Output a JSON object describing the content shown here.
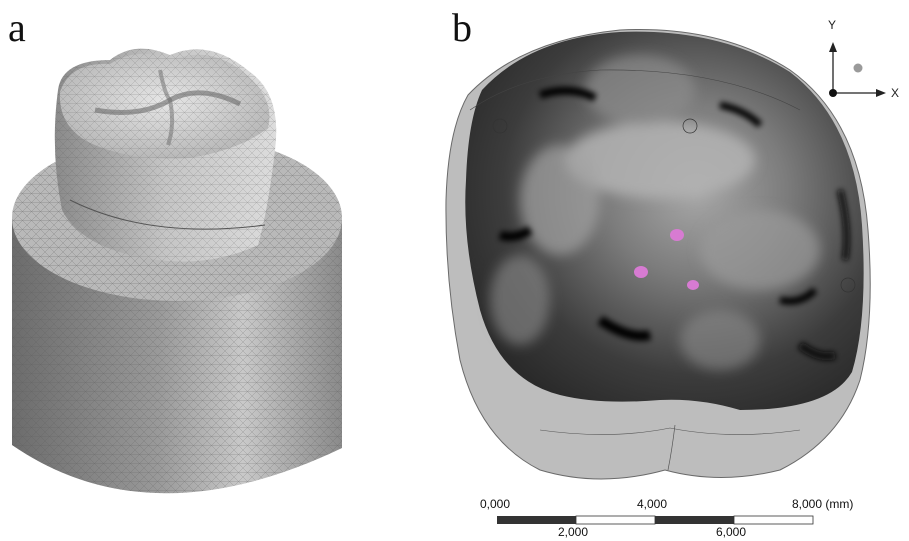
{
  "panels": {
    "a": {
      "label": "a"
    },
    "b": {
      "label": "b"
    }
  },
  "axis_triad": {
    "y_label": "Y",
    "x_label": "X"
  },
  "scale_bar": {
    "top_labels": [
      "0,000",
      "4,000",
      "8,000 (mm)"
    ],
    "bottom_labels": [
      "2,000",
      "6,000"
    ]
  },
  "colors": {
    "contact_points": "#d77bd2",
    "scale_dark": "#333333"
  }
}
